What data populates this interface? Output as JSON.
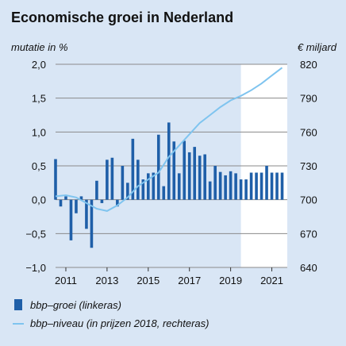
{
  "chart_data": {
    "type": "bar",
    "title": "Economische groei in Nederland",
    "ylabel_left": "mutatie in %",
    "ylabel_right": "€ miljard",
    "left_axis": {
      "min": -1.0,
      "max": 2.0,
      "ticks": [
        "2,0",
        "1,5",
        "1,0",
        "0,5",
        "0,0",
        "−0,5",
        "−1,0"
      ],
      "tick_values": [
        2.0,
        1.5,
        1.0,
        0.5,
        0.0,
        -0.5,
        -1.0
      ]
    },
    "right_axis": {
      "min": 640,
      "max": 820,
      "ticks": [
        "820",
        "790",
        "760",
        "730",
        "700",
        "670",
        "640"
      ],
      "tick_values": [
        820,
        790,
        760,
        730,
        700,
        670,
        640
      ]
    },
    "x_axis": {
      "start": 2010.5,
      "end": 2021.75,
      "labels": [
        "2011",
        "2013",
        "2015",
        "2017",
        "2019",
        "2021"
      ],
      "label_values": [
        2011,
        2013,
        2015,
        2017,
        2019,
        2021
      ]
    },
    "forecast_from": 2019.5,
    "grid": true,
    "colors": {
      "bar": "#1f5fa8",
      "line": "#7fc4ef",
      "background": "#d9e6f5",
      "forecast": "#ffffff",
      "grid": "#8a8a8a"
    },
    "series": [
      {
        "name": "bbp–groei (linkeras)",
        "kind": "bar",
        "axis": "left",
        "x": [
          2010.5,
          2010.75,
          2011.0,
          2011.25,
          2011.5,
          2011.75,
          2012.0,
          2012.25,
          2012.5,
          2012.75,
          2013.0,
          2013.25,
          2013.5,
          2013.75,
          2014.0,
          2014.25,
          2014.5,
          2014.75,
          2015.0,
          2015.25,
          2015.5,
          2015.75,
          2016.0,
          2016.25,
          2016.5,
          2016.75,
          2017.0,
          2017.25,
          2017.5,
          2017.75,
          2018.0,
          2018.25,
          2018.5,
          2018.75,
          2019.0,
          2019.25,
          2019.5,
          2019.75,
          2020.0,
          2020.25,
          2020.5,
          2020.75,
          2021.0,
          2021.25,
          2021.5
        ],
        "values": [
          0.6,
          -0.1,
          0.05,
          -0.6,
          -0.2,
          0.05,
          -0.43,
          -0.71,
          0.28,
          -0.05,
          0.59,
          0.62,
          -0.1,
          0.5,
          0.25,
          0.9,
          0.59,
          0.3,
          0.39,
          0.4,
          0.96,
          0.2,
          1.14,
          0.86,
          0.39,
          0.87,
          0.7,
          0.78,
          0.65,
          0.67,
          0.27,
          0.5,
          0.41,
          0.36,
          0.42,
          0.39,
          0.3,
          0.3,
          0.4,
          0.4,
          0.4,
          0.5,
          0.4,
          0.4,
          0.4
        ]
      },
      {
        "name": "bbp–niveau (in prijzen 2018, rechteras)",
        "kind": "line",
        "axis": "right",
        "x": [
          2010.5,
          2011.0,
          2011.5,
          2012.0,
          2012.5,
          2013.0,
          2013.5,
          2014.0,
          2014.5,
          2015.0,
          2015.5,
          2016.0,
          2016.5,
          2017.0,
          2017.5,
          2018.0,
          2018.5,
          2019.0,
          2019.5,
          2020.0,
          2020.5,
          2021.0,
          2021.5
        ],
        "values": [
          703,
          704,
          702,
          697,
          692,
          690,
          695,
          702,
          712,
          718,
          724,
          738,
          748,
          758,
          768,
          775,
          782,
          788,
          792,
          797,
          803,
          810,
          817
        ]
      }
    ],
    "legend": {
      "placement": "bottom-left"
    }
  }
}
